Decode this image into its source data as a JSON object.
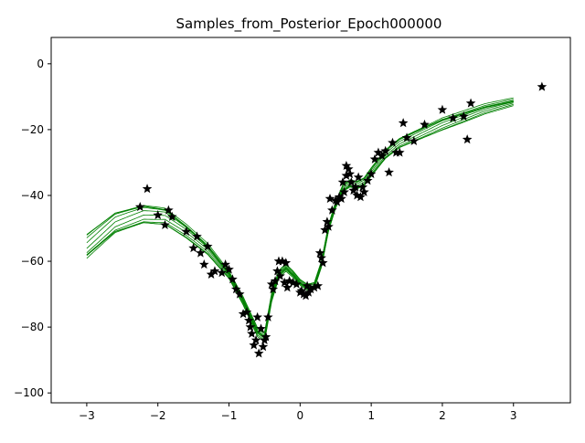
{
  "chart_data": {
    "type": "scatter",
    "title": "Samples_from_Posterior_Epoch000000",
    "xlabel": "",
    "ylabel": "",
    "xlim": [
      -3.5,
      3.8
    ],
    "ylim": [
      -103,
      8
    ],
    "x_ticks": [
      -3,
      -2,
      -1,
      0,
      1,
      2,
      3
    ],
    "y_ticks": [
      0,
      -20,
      -40,
      -60,
      -80,
      -100
    ],
    "x_tick_labels": [
      "−3",
      "−2",
      "−1",
      "0",
      "1",
      "2",
      "3"
    ],
    "y_tick_labels": [
      "0",
      "−20",
      "−40",
      "−60",
      "−80",
      "−100"
    ],
    "grid": false,
    "legend": "none",
    "colors": {
      "samples": "#008000",
      "points": "#000000"
    },
    "marker": "star",
    "posterior_samples": {
      "count": 10,
      "x": [
        -3.0,
        -2.6,
        -2.2,
        -1.9,
        -1.6,
        -1.3,
        -1.0,
        -0.8,
        -0.6,
        -0.5,
        -0.4,
        -0.3,
        -0.2,
        -0.1,
        0.0,
        0.1,
        0.2,
        0.3,
        0.4,
        0.5,
        0.6,
        0.7,
        0.8,
        0.9,
        1.0,
        1.2,
        1.4,
        1.6,
        1.8,
        2.0,
        2.2,
        2.4,
        2.6,
        2.8,
        3.0
      ],
      "mean": [
        -56.0,
        -48.5,
        -45.5,
        -46.0,
        -50.5,
        -56.0,
        -64.0,
        -72.0,
        -81.5,
        -83.0,
        -71.0,
        -64.0,
        -62.0,
        -64.0,
        -66.5,
        -68.0,
        -67.5,
        -61.0,
        -50.0,
        -43.0,
        -38.0,
        -36.5,
        -37.0,
        -36.0,
        -33.0,
        -27.5,
        -24.0,
        -22.0,
        -20.0,
        -18.0,
        -16.5,
        -15.0,
        -13.5,
        -12.5,
        -11.5
      ],
      "spread_at_x": [
        -3.0,
        -2.0,
        -1.0,
        -0.5,
        0.0,
        0.5,
        1.0,
        2.0,
        3.0
      ],
      "spread": [
        4.0,
        3.0,
        1.0,
        1.2,
        0.8,
        1.0,
        1.5,
        2.0,
        1.0
      ]
    },
    "points": {
      "x": [
        -2.25,
        -2.15,
        -2.0,
        -1.9,
        -1.85,
        -1.8,
        -1.6,
        -1.5,
        -1.45,
        -1.4,
        -1.35,
        -1.3,
        -1.25,
        -1.2,
        -1.1,
        -1.05,
        -1.0,
        -0.95,
        -0.9,
        -0.85,
        -0.8,
        -0.75,
        -0.72,
        -0.7,
        -0.68,
        -0.65,
        -0.62,
        -0.6,
        -0.58,
        -0.55,
        -0.52,
        -0.5,
        -0.48,
        -0.45,
        -0.4,
        -0.38,
        -0.35,
        -0.32,
        -0.3,
        -0.28,
        -0.25,
        -0.22,
        -0.2,
        -0.18,
        -0.15,
        -0.1,
        -0.05,
        0.0,
        0.02,
        0.05,
        0.08,
        0.1,
        0.12,
        0.15,
        0.2,
        0.25,
        0.28,
        0.3,
        0.32,
        0.35,
        0.38,
        0.4,
        0.42,
        0.45,
        0.5,
        0.52,
        0.55,
        0.58,
        0.6,
        0.62,
        0.65,
        0.65,
        0.68,
        0.7,
        0.72,
        0.75,
        0.78,
        0.8,
        0.82,
        0.85,
        0.88,
        0.9,
        0.95,
        1.0,
        1.05,
        1.1,
        1.15,
        1.2,
        1.25,
        1.3,
        1.35,
        1.4,
        1.45,
        1.5,
        1.6,
        1.75,
        2.0,
        2.15,
        2.3,
        2.35,
        2.4,
        3.4
      ],
      "y": [
        -43.5,
        -38.0,
        -46.0,
        -49.0,
        -44.5,
        -46.5,
        -51.0,
        -56.0,
        -52.5,
        -57.5,
        -61.0,
        -55.5,
        -64.0,
        -63.0,
        -63.5,
        -61.0,
        -62.5,
        -65.5,
        -68.5,
        -70.0,
        -76.0,
        -75.5,
        -78.0,
        -80.0,
        -82.0,
        -85.5,
        -84.0,
        -77.0,
        -88.0,
        -80.5,
        -86.0,
        -84.0,
        -83.0,
        -77.0,
        -67.0,
        -68.5,
        -66.0,
        -63.0,
        -60.0,
        -64.5,
        -60.0,
        -66.5,
        -60.5,
        -68.0,
        -66.0,
        -66.5,
        -67.0,
        -69.5,
        -69.0,
        -70.0,
        -70.5,
        -67.5,
        -69.5,
        -68.5,
        -68.0,
        -67.5,
        -57.5,
        -59.0,
        -60.5,
        -50.5,
        -48.0,
        -49.5,
        -41.0,
        -44.5,
        -41.5,
        -42.0,
        -40.5,
        -41.0,
        -36.0,
        -39.0,
        -31.0,
        -34.0,
        -32.0,
        -33.5,
        -36.0,
        -38.5,
        -37.5,
        -40.0,
        -34.5,
        -40.5,
        -37.5,
        -39.0,
        -35.5,
        -33.5,
        -29.0,
        -27.0,
        -28.0,
        -26.5,
        -33.0,
        -24.0,
        -27.0,
        -27.0,
        -18.0,
        -22.5,
        -23.5,
        -18.5,
        -14.0,
        -16.5,
        -16.0,
        -23.0,
        -12.0,
        -7.0
      ]
    }
  }
}
